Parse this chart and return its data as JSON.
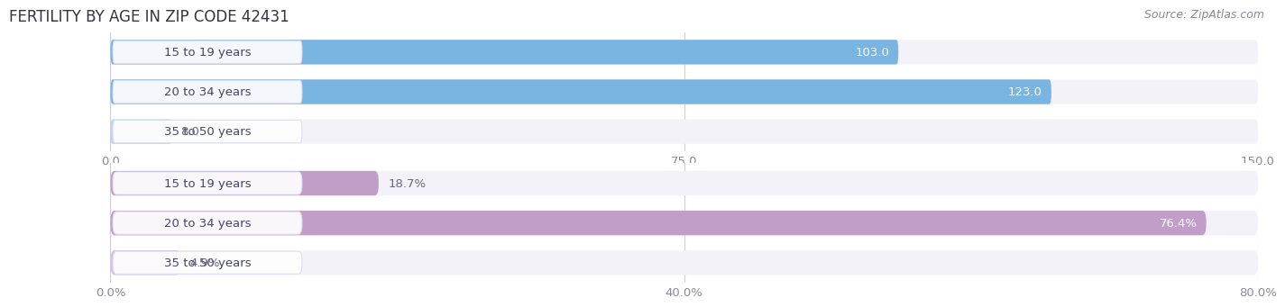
{
  "title": "FERTILITY BY AGE IN ZIP CODE 42431",
  "source": "Source: ZipAtlas.com",
  "top_chart": {
    "categories": [
      "15 to 19 years",
      "20 to 34 years",
      "35 to 50 years"
    ],
    "values": [
      103.0,
      123.0,
      8.0
    ],
    "bar_color": "#7ab4e0",
    "bar_color_light": "#b8d4ef",
    "xlim": [
      0,
      150
    ],
    "xticks": [
      0.0,
      75.0,
      150.0
    ],
    "xtick_labels": [
      "0.0",
      "75.0",
      "150.0"
    ],
    "value_labels": [
      "103.0",
      "123.0",
      "8.0"
    ],
    "value_threshold_pct": 0.2
  },
  "bottom_chart": {
    "categories": [
      "15 to 19 years",
      "20 to 34 years",
      "35 to 50 years"
    ],
    "values": [
      18.7,
      76.4,
      4.9
    ],
    "bar_color": "#c09ec8",
    "bar_color_light": "#dbbde0",
    "xlim": [
      0,
      80
    ],
    "xticks": [
      0.0,
      40.0,
      80.0
    ],
    "xtick_labels": [
      "0.0%",
      "40.0%",
      "80.0%"
    ],
    "value_labels": [
      "18.7%",
      "76.4%",
      "4.9%"
    ],
    "value_threshold_pct": 0.2
  },
  "fig_bg_color": "#ffffff",
  "chart_bg_color": "#f2f2f8",
  "bar_bg_color": "#e6e6f0",
  "label_box_color": "#ffffff",
  "label_box_border": "#ddddee",
  "label_text_color": "#444466",
  "value_inside_color": "#ffffff",
  "value_outside_color": "#666688",
  "grid_color": "#ccccdd",
  "title_color": "#333344",
  "source_color": "#888899",
  "bar_height": 0.62,
  "label_fontsize": 9.5,
  "value_fontsize": 9.5,
  "title_fontsize": 12,
  "source_fontsize": 9
}
